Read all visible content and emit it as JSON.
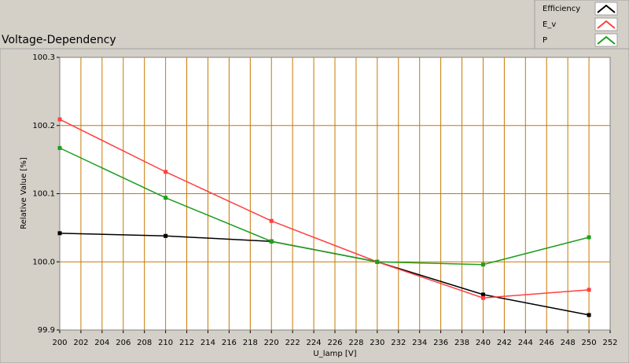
{
  "chart_data": {
    "type": "line",
    "title": "Voltage-Dependency",
    "x_label": "U_lamp [V]",
    "y_label": "Relative Value [%]",
    "x": [
      200,
      210,
      220,
      230,
      240,
      250
    ],
    "series": [
      {
        "name": "Efficiency",
        "color": "#000000",
        "values": [
          100.042,
          100.038,
          100.03,
          100.0,
          99.952,
          99.922
        ]
      },
      {
        "name": "E_v",
        "color": "#ff4040",
        "values": [
          100.209,
          100.132,
          100.06,
          100.0,
          99.947,
          99.959
        ]
      },
      {
        "name": "P",
        "color": "#1e9e1e",
        "values": [
          100.167,
          100.094,
          100.03,
          100.0,
          99.996,
          100.036
        ]
      }
    ],
    "xlim": [
      200,
      252
    ],
    "xticks": [
      200,
      202,
      204,
      206,
      208,
      210,
      212,
      214,
      216,
      218,
      220,
      222,
      224,
      226,
      228,
      230,
      232,
      234,
      236,
      238,
      240,
      242,
      244,
      246,
      248,
      250,
      252
    ],
    "ylim": [
      99.9,
      100.3
    ],
    "yticks": [
      99.9,
      {
        "value": 100,
        "label": "100.0"
      },
      100.1,
      100.2,
      100.3
    ],
    "grid": true,
    "grid_color": "#c87800",
    "legend": "top-right"
  }
}
